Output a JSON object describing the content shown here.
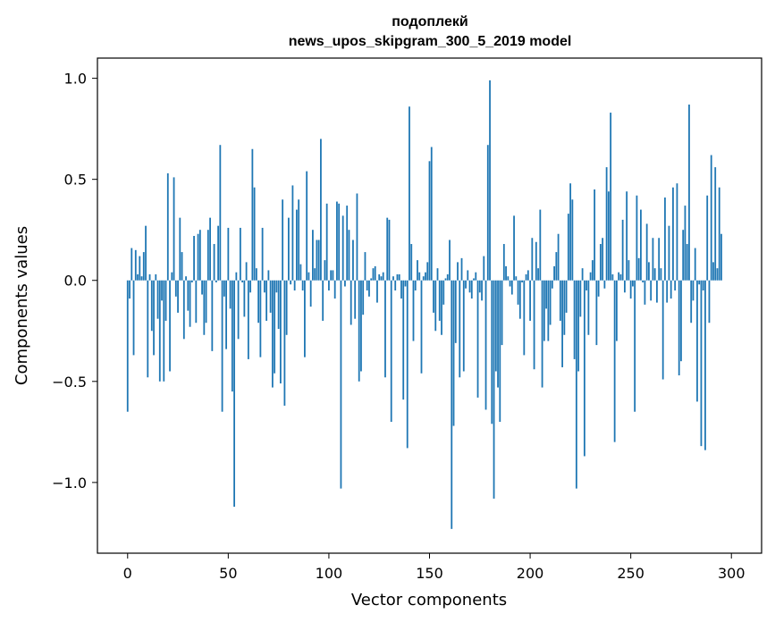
{
  "chart_data": {
    "type": "bar",
    "title_line1": "подоплекй",
    "title_line2": "news_upos_skipgram_300_5_2019 model",
    "xlabel": "Vector components",
    "ylabel": "Components values",
    "xlim": [
      -15,
      315
    ],
    "ylim": [
      -1.35,
      1.1
    ],
    "xticks": [
      0,
      50,
      100,
      150,
      200,
      250,
      300
    ],
    "xtick_labels": [
      "0",
      "50",
      "100",
      "150",
      "200",
      "250",
      "300"
    ],
    "yticks": [
      1.0,
      0.5,
      0.0,
      -0.5,
      -1.0
    ],
    "ytick_labels": [
      "1.0",
      "0.5",
      "0.0",
      "−0.5",
      "−1.0"
    ],
    "bar_color": "#1f77b4",
    "grid": false,
    "values": [
      -0.65,
      -0.09,
      0.16,
      -0.37,
      0.15,
      0.03,
      0.12,
      0.02,
      0.14,
      0.27,
      -0.48,
      0.03,
      -0.25,
      -0.37,
      0.03,
      -0.19,
      -0.5,
      -0.1,
      -0.5,
      -0.2,
      0.53,
      -0.45,
      0.04,
      0.51,
      -0.08,
      -0.16,
      0.31,
      0.14,
      -0.29,
      0.02,
      -0.15,
      -0.23,
      -0.01,
      0.22,
      -0.21,
      0.23,
      0.25,
      -0.07,
      -0.27,
      -0.21,
      0.25,
      0.31,
      -0.35,
      0.18,
      -0.01,
      0.27,
      0.67,
      -0.65,
      -0.08,
      -0.34,
      0.26,
      -0.14,
      -0.55,
      -1.12,
      0.04,
      -0.29,
      0.26,
      -0.01,
      -0.18,
      0.09,
      -0.39,
      -0.06,
      0.65,
      0.46,
      0.06,
      -0.21,
      -0.38,
      0.26,
      -0.06,
      -0.2,
      0.05,
      -0.16,
      -0.53,
      -0.46,
      -0.06,
      -0.24,
      -0.51,
      0.4,
      -0.62,
      -0.27,
      0.31,
      -0.02,
      0.47,
      -0.05,
      0.35,
      0.4,
      0.08,
      -0.05,
      -0.38,
      0.54,
      0.04,
      -0.13,
      0.25,
      0.06,
      0.2,
      0.2,
      0.7,
      -0.2,
      0.1,
      0.38,
      -0.05,
      0.05,
      0.05,
      -0.09,
      0.39,
      0.38,
      -1.03,
      0.32,
      -0.03,
      0.37,
      0.25,
      -0.22,
      0.2,
      -0.19,
      0.43,
      -0.5,
      -0.45,
      -0.17,
      0.14,
      -0.05,
      -0.08,
      0.01,
      0.06,
      0.07,
      -0.11,
      0.03,
      0.02,
      0.04,
      -0.48,
      0.31,
      0.3,
      -0.7,
      0.02,
      -0.05,
      0.03,
      0.03,
      -0.09,
      -0.59,
      -0.03,
      -0.83,
      0.86,
      0.18,
      -0.3,
      -0.05,
      0.1,
      0.04,
      -0.46,
      0.02,
      0.04,
      0.09,
      0.59,
      0.66,
      -0.16,
      -0.25,
      0.06,
      -0.2,
      -0.27,
      -0.12,
      0.01,
      0.03,
      0.2,
      -1.23,
      -0.72,
      -0.31,
      0.09,
      -0.48,
      0.11,
      -0.45,
      -0.04,
      0.05,
      -0.06,
      -0.09,
      0.01,
      0.04,
      -0.58,
      -0.06,
      -0.1,
      0.12,
      -0.64,
      0.67,
      0.99,
      -0.71,
      -1.08,
      -0.45,
      -0.53,
      -0.7,
      -0.32,
      0.18,
      0.07,
      0.02,
      -0.03,
      -0.07,
      0.32,
      0.02,
      -0.12,
      -0.19,
      -0.01,
      -0.37,
      0.03,
      0.05,
      -0.2,
      0.21,
      -0.44,
      0.19,
      0.06,
      0.35,
      -0.53,
      -0.3,
      -0.14,
      -0.3,
      -0.22,
      -0.04,
      0.07,
      0.14,
      0.23,
      -0.2,
      -0.43,
      -0.27,
      -0.16,
      0.33,
      0.48,
      0.4,
      -0.39,
      -1.03,
      -0.45,
      -0.18,
      0.06,
      -0.87,
      -0.05,
      -0.27,
      0.04,
      0.1,
      0.45,
      -0.32,
      -0.08,
      0.18,
      0.21,
      -0.04,
      0.56,
      0.44,
      0.83,
      0.03,
      -0.8,
      -0.3,
      0.04,
      0.03,
      0.3,
      -0.06,
      0.44,
      0.1,
      -0.09,
      -0.03,
      -0.65,
      0.42,
      0.11,
      0.35,
      -0.01,
      -0.12,
      0.28,
      0.09,
      -0.1,
      0.21,
      0.06,
      -0.11,
      0.21,
      0.06,
      -0.49,
      0.41,
      -0.11,
      0.27,
      -0.09,
      0.46,
      -0.05,
      0.48,
      -0.47,
      -0.4,
      0.25,
      0.37,
      0.18,
      0.87,
      -0.21,
      -0.1,
      0.16,
      -0.6,
      -0.02,
      -0.82,
      -0.05,
      -0.84,
      0.42,
      -0.21,
      0.62,
      0.09,
      0.56,
      0.06,
      0.46,
      0.23
    ]
  }
}
